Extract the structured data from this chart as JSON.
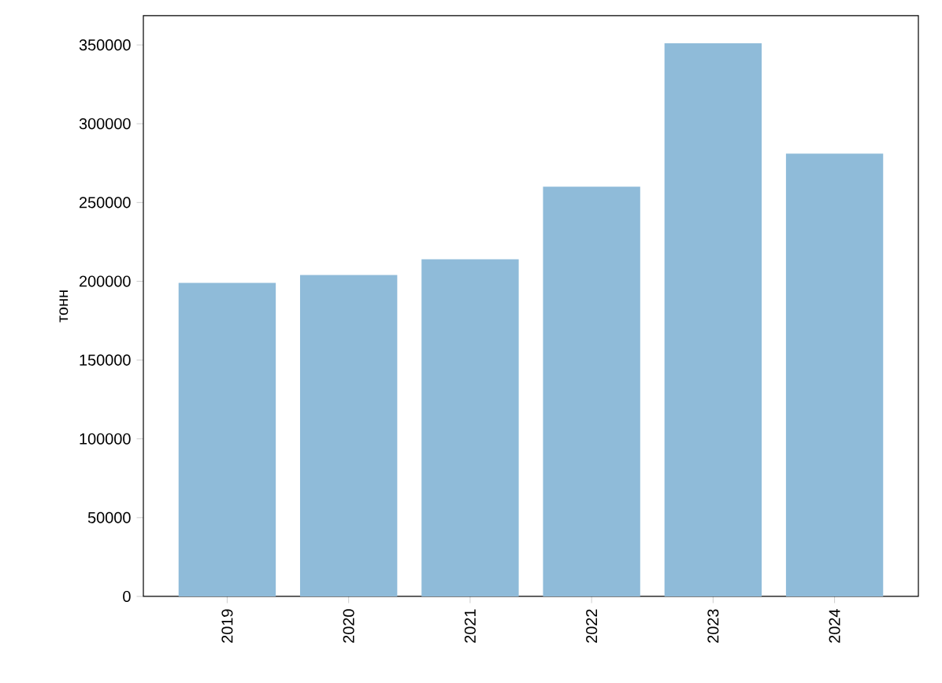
{
  "chart_data": {
    "type": "bar",
    "ylabel": "тонн",
    "categories": [
      "2019",
      "2020",
      "2021",
      "2022",
      "2023",
      "2024"
    ],
    "values": [
      199000,
      204000,
      214000,
      260000,
      351000,
      281000
    ],
    "color": "#8fbbd9",
    "ylim": [
      0,
      368550
    ],
    "yticks": [
      0,
      50000,
      100000,
      150000,
      200000,
      250000,
      300000,
      350000
    ],
    "grid": false
  }
}
